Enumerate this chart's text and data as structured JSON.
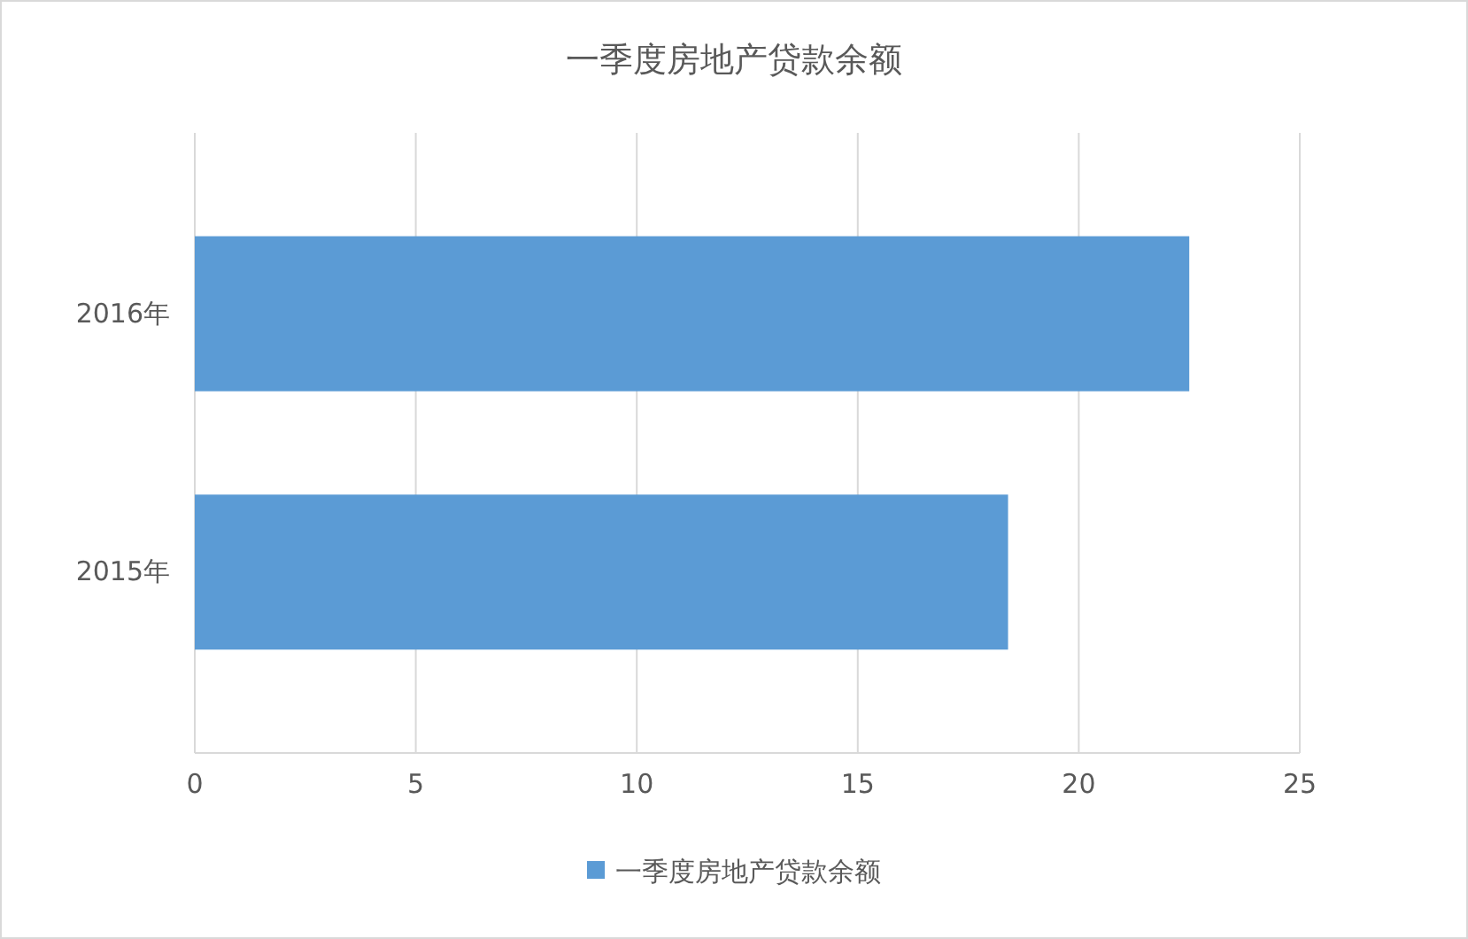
{
  "chart_data": {
    "type": "bar",
    "orientation": "horizontal",
    "title": "一季度房地产贷款余额",
    "categories": [
      "2016年",
      "2015年"
    ],
    "series": [
      {
        "name": "一季度房地产贷款余额",
        "color": "#5b9bd5",
        "values": [
          22.5,
          18.4
        ]
      }
    ],
    "xlim": [
      0,
      25
    ],
    "xticks": [
      0,
      5,
      10,
      15,
      20,
      25
    ],
    "grid": "x",
    "legend": "bottom"
  }
}
